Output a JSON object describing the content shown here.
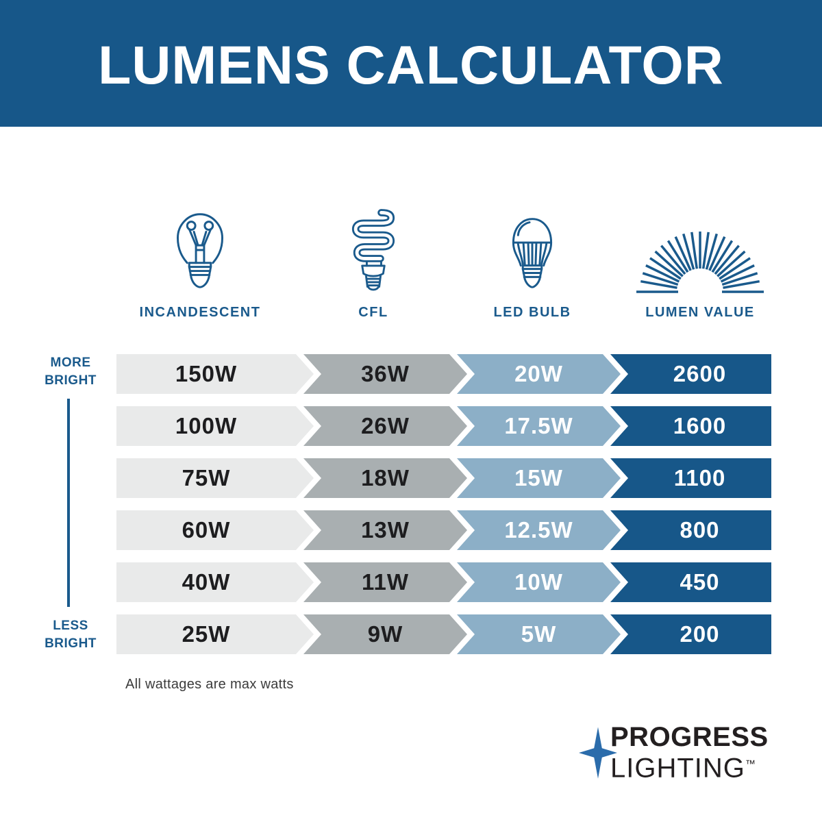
{
  "header": {
    "title": "LUMENS CALCULATOR"
  },
  "columns": [
    {
      "label": "INCANDESCENT",
      "icon": "incandescent-bulb-icon"
    },
    {
      "label": "CFL",
      "icon": "cfl-bulb-icon"
    },
    {
      "label": "LED BULB",
      "icon": "led-bulb-icon"
    },
    {
      "label": "LUMEN VALUE",
      "icon": "sunburst-icon"
    }
  ],
  "brightness_scale": {
    "top": "MORE BRIGHT",
    "bottom": "LESS BRIGHT"
  },
  "chart_data": {
    "type": "table",
    "title": "LUMENS CALCULATOR",
    "columns": [
      "INCANDESCENT",
      "CFL",
      "LED BULB",
      "LUMEN VALUE"
    ],
    "column_keys": [
      "incandescent",
      "cfl",
      "led-bulb",
      "lumen-value"
    ],
    "rows": [
      [
        "150W",
        "36W",
        "20W",
        "2600"
      ],
      [
        "100W",
        "26W",
        "17.5W",
        "1600"
      ],
      [
        "75W",
        "18W",
        "15W",
        "1100"
      ],
      [
        "60W",
        "13W",
        "12.5W",
        "800"
      ],
      [
        "40W",
        "11W",
        "10W",
        "450"
      ],
      [
        "25W",
        "9W",
        "5W",
        "200"
      ]
    ]
  },
  "footnote": "All wattages are max watts",
  "logo": {
    "line1": "PROGRESS",
    "line2": "LIGHTING",
    "trademark": "™"
  },
  "colors": {
    "header_bg": "#175789",
    "brand_blue": "#1A5A8C",
    "star_blue": "#2B6CAB",
    "band_fills": [
      "#E9EAEA",
      "#A9AFB1",
      "#8CAFC7",
      "#175789"
    ],
    "band_text_colors": [
      "#1D1D1F",
      "#1D1D1F",
      "#FFFFFF",
      "#FFFFFF"
    ]
  }
}
